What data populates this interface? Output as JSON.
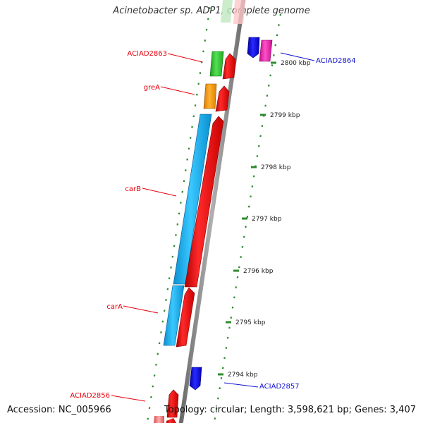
{
  "title": "Acinetobacter sp. ADP1, complete genome",
  "footer": {
    "accession": "Accession: NC_005966",
    "topology": "Topology: circular; Length: 3,598,621 bp; Genes: 3,407"
  },
  "scale": {
    "ticks": [
      "2800 kbp",
      "2799 kbp",
      "2798 kbp",
      "2797 kbp",
      "2796 kbp",
      "2795 kbp",
      "2794 kbp"
    ],
    "tick_color": "#2e8b2e"
  },
  "genes_left": [
    {
      "label": "ACIAD2863",
      "color": "#e8000b"
    },
    {
      "label": "greA",
      "color": "#e8000b"
    },
    {
      "label": "carB",
      "color": "#e8000b"
    },
    {
      "label": "carA",
      "color": "#e8000b"
    },
    {
      "label": "ACIAD2856",
      "color": "#e8000b"
    }
  ],
  "genes_right": [
    {
      "label": "ACIAD2864",
      "color": "#1010d0"
    },
    {
      "label": "ACIAD2857",
      "color": "#1010d0"
    }
  ],
  "colors": {
    "backbone": "#8c8c8c",
    "forward_cds": "#ff1a1a",
    "reverse_cds": "#0000ee",
    "green_feature": "#33cc33",
    "orange_feature": "#ff9900",
    "cyan_feature": "#19b5ec",
    "magenta_feature": "#ee22aa",
    "label_red": "#e8000b",
    "label_blue": "#1010d0"
  }
}
